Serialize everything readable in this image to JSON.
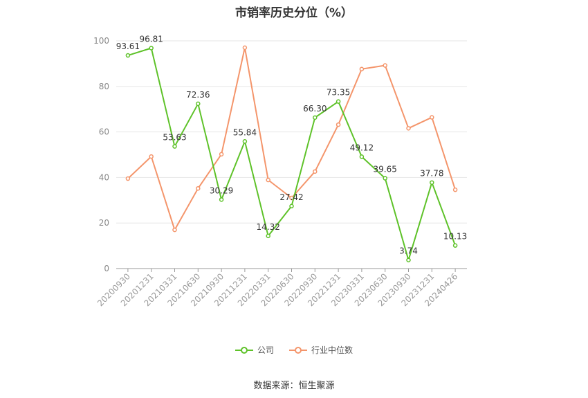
{
  "chart_data": {
    "type": "line",
    "title": "市销率历史分位（%）",
    "categories": [
      "20200930",
      "20201231",
      "20210331",
      "20210630",
      "20210930",
      "20211231",
      "20220331",
      "20220630",
      "20220930",
      "20221231",
      "20230331",
      "20230630",
      "20230930",
      "20231231",
      "20240426"
    ],
    "series": [
      {
        "name": "公司",
        "color": "#5ec229",
        "values": [
          93.61,
          96.81,
          53.63,
          72.36,
          30.29,
          55.84,
          14.32,
          27.42,
          66.3,
          73.35,
          49.12,
          39.65,
          3.74,
          37.78,
          10.13
        ],
        "labels": [
          "93.61",
          "96.81",
          "53.63",
          "72.36",
          "30.29",
          "55.84",
          "14.32",
          "27.42",
          "66.30",
          "73.35",
          "49.12",
          "39.65",
          "3.74",
          "37.78",
          "10.13"
        ]
      },
      {
        "name": "行业中位数",
        "color": "#f4956b",
        "values": [
          39.5,
          49.2,
          17.0,
          35.2,
          50.2,
          97.0,
          38.9,
          31.0,
          42.6,
          63.2,
          87.6,
          89.2,
          61.6,
          66.4,
          34.6
        ]
      }
    ],
    "yticks": [
      0,
      20,
      40,
      60,
      80,
      100
    ],
    "ylim": [
      0,
      100
    ],
    "grid": true,
    "legend_position": "bottom"
  },
  "source": "数据来源：恒生聚源"
}
